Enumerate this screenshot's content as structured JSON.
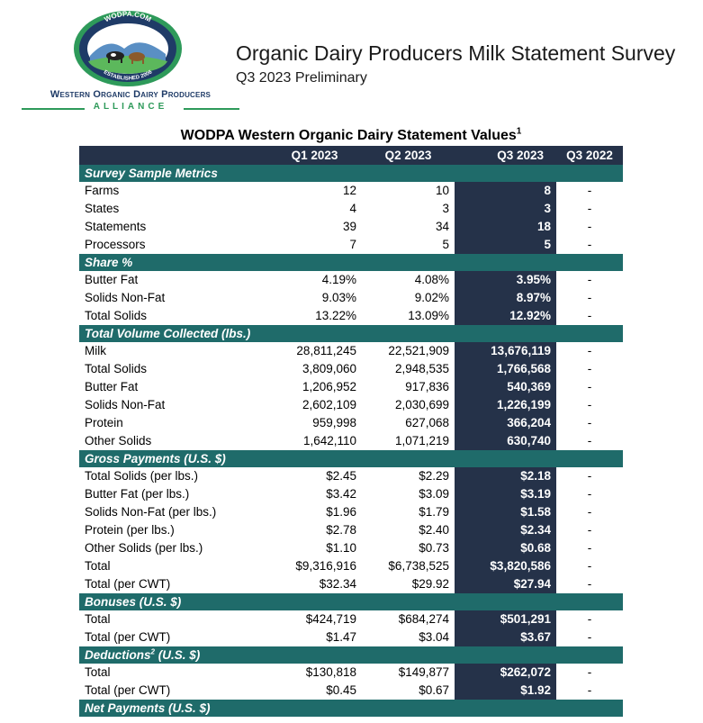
{
  "logo": {
    "badge_top": "WODPA.COM",
    "badge_bottom": "ESTABLISHED 2006",
    "org_name": "Western Organic Dairy Producers",
    "alliance": "ALLIANCE"
  },
  "header": {
    "title": "Organic Dairy Producers Milk Statement Survey",
    "subtitle": "Q3 2023 Preliminary"
  },
  "table": {
    "title": "WODPA Western Organic Dairy Statement Values",
    "title_footnote": "1",
    "columns": [
      "",
      "Q1 2023",
      "Q2 2023",
      "Q3 2023",
      "Q3 2022"
    ],
    "sections": [
      {
        "title": "Survey Sample Metrics",
        "rows": [
          {
            "label": "Farms",
            "indent": 0,
            "q1": "12",
            "q2": "10",
            "q3": "8",
            "q3_2022": "-"
          },
          {
            "label": "States",
            "indent": 0,
            "q1": "4",
            "q2": "3",
            "q3": "3",
            "q3_2022": "-"
          },
          {
            "label": "Statements",
            "indent": 0,
            "q1": "39",
            "q2": "34",
            "q3": "18",
            "q3_2022": "-"
          },
          {
            "label": "Processors",
            "indent": 0,
            "q1": "7",
            "q2": "5",
            "q3": "5",
            "q3_2022": "-"
          }
        ]
      },
      {
        "title": "Share %",
        "rows": [
          {
            "label": "Butter Fat",
            "indent": 0,
            "q1": "4.19%",
            "q2": "4.08%",
            "q3": "3.95%",
            "q3_2022": "-"
          },
          {
            "label": "Solids Non-Fat",
            "indent": 0,
            "q1": "9.03%",
            "q2": "9.02%",
            "q3": "8.97%",
            "q3_2022": "-"
          },
          {
            "label": "Total Solids",
            "indent": 0,
            "q1": "13.22%",
            "q2": "13.09%",
            "q3": "12.92%",
            "q3_2022": "-"
          }
        ]
      },
      {
        "title": "Total Volume Collected (lbs.)",
        "rows": [
          {
            "label": "Milk",
            "indent": 0,
            "q1": "28,811,245",
            "q2": "22,521,909",
            "q3": "13,676,119",
            "q3_2022": "-"
          },
          {
            "label": "Total Solids",
            "indent": 1,
            "q1": "3,809,060",
            "q2": "2,948,535",
            "q3": "1,766,568",
            "q3_2022": "-"
          },
          {
            "label": "Butter Fat",
            "indent": 2,
            "q1": "1,206,952",
            "q2": "917,836",
            "q3": "540,369",
            "q3_2022": "-"
          },
          {
            "label": "Solids Non-Fat",
            "indent": 2,
            "q1": "2,602,109",
            "q2": "2,030,699",
            "q3": "1,226,199",
            "q3_2022": "-"
          },
          {
            "label": "Protein",
            "indent": 3,
            "q1": "959,998",
            "q2": "627,068",
            "q3": "366,204",
            "q3_2022": "-"
          },
          {
            "label": "Other Solids",
            "indent": 3,
            "q1": "1,642,110",
            "q2": "1,071,219",
            "q3": "630,740",
            "q3_2022": "-"
          }
        ]
      },
      {
        "title": "Gross Payments (U.S. $)",
        "rows": [
          {
            "label": "Total Solids (per lbs.)",
            "indent": 0,
            "q1": "$2.45",
            "q2": "$2.29",
            "q3": "$2.18",
            "q3_2022": "-"
          },
          {
            "label": "Butter Fat (per lbs.)",
            "indent": 1,
            "q1": "$3.42",
            "q2": "$3.09",
            "q3": "$3.19",
            "q3_2022": "-"
          },
          {
            "label": "Solids Non-Fat (per lbs.)",
            "indent": 1,
            "q1": "$1.96",
            "q2": "$1.79",
            "q3": "$1.58",
            "q3_2022": "-"
          },
          {
            "label": "Protein (per lbs.)",
            "indent": 2,
            "q1": "$2.78",
            "q2": "$2.40",
            "q3": "$2.34",
            "q3_2022": "-"
          },
          {
            "label": "Other Solids (per lbs.)",
            "indent": 2,
            "q1": "$1.10",
            "q2": "$0.73",
            "q3": "$0.68",
            "q3_2022": "-"
          },
          {
            "label": "Total",
            "indent": 0,
            "q1": "$9,316,916",
            "q2": "$6,738,525",
            "q3": "$3,820,586",
            "q3_2022": "-"
          },
          {
            "label": "Total (per CWT)",
            "indent": 0,
            "q1": "$32.34",
            "q2": "$29.92",
            "q3": "$27.94",
            "q3_2022": "-"
          }
        ]
      },
      {
        "title": "Bonuses (U.S. $)",
        "rows": [
          {
            "label": "Total",
            "indent": 0,
            "q1": "$424,719",
            "q2": "$684,274",
            "q3": "$501,291",
            "q3_2022": "-"
          },
          {
            "label": "Total (per CWT)",
            "indent": 0,
            "q1": "$1.47",
            "q2": "$3.04",
            "q3": "$3.67",
            "q3_2022": "-"
          }
        ]
      },
      {
        "title": "Deductions",
        "title_footnote": "2",
        "title_suffix": " (U.S. $)",
        "rows": [
          {
            "label": "Total",
            "indent": 0,
            "q1": "$130,818",
            "q2": "$149,877",
            "q3": "$262,072",
            "q3_2022": "-"
          },
          {
            "label": "Total (per CWT)",
            "indent": 0,
            "q1": "$0.45",
            "q2": "$0.67",
            "q3": "$1.92",
            "q3_2022": "-"
          }
        ]
      },
      {
        "title": "Net Payments (U.S. $)",
        "rows": []
      }
    ]
  },
  "colors": {
    "section_band": "#1f6b6a",
    "header_band": "#253249",
    "highlight_column": "#253249",
    "logo_navy": "#1f3b67",
    "logo_green": "#2e9a5a"
  }
}
